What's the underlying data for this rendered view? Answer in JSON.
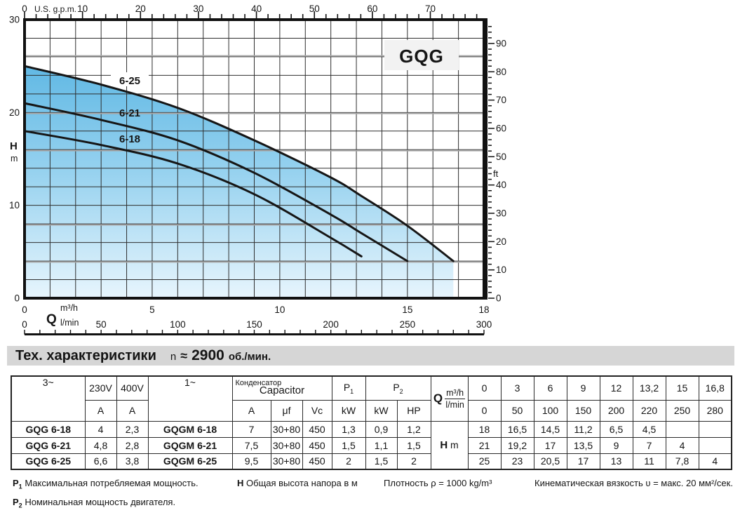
{
  "chart_data": {
    "type": "line",
    "title": "GQG",
    "series": [
      {
        "name": "6-18",
        "x": [
          0,
          3,
          6,
          9,
          12,
          13.2
        ],
        "y": [
          18,
          16.5,
          14.5,
          11.2,
          6.5,
          4.5
        ]
      },
      {
        "name": "6-21",
        "x": [
          0,
          3,
          6,
          9,
          12,
          13.2,
          15
        ],
        "y": [
          21,
          19.2,
          17,
          13.5,
          9,
          7,
          4
        ]
      },
      {
        "name": "6-25",
        "x": [
          0,
          3,
          6,
          9,
          12,
          13.2,
          15,
          16.8
        ],
        "y": [
          25,
          23,
          20.5,
          17,
          13,
          11,
          7.8,
          4
        ]
      }
    ],
    "xlim": [
      0,
      18
    ],
    "ylim_m": [
      0,
      30
    ],
    "grid": {
      "x_step_m3h": 1,
      "y_step_m": 2
    },
    "gray_guides_m": [
      3.9,
      7.9,
      15.9,
      19.9,
      26.1
    ],
    "axes": {
      "top": {
        "unit": "U.S. g.p.m.",
        "zero": "0",
        "labels": [
          10,
          20,
          30,
          40,
          50,
          60,
          70
        ],
        "minor_step": 2,
        "max": 78,
        "gpm_per_m3h": 4.403
      },
      "left": {
        "labels": [
          30,
          20,
          10,
          0
        ],
        "symbol": "H",
        "unit": "m"
      },
      "right": {
        "unit": "ft",
        "labels": [
          90,
          80,
          70,
          60,
          50,
          40,
          30,
          20,
          10,
          0
        ],
        "minor_step": 2,
        "max": 96,
        "ft_per_m": 3.2808
      },
      "bottom_m3h": {
        "unit": "m³/h",
        "labels": [
          0,
          5,
          10,
          15,
          18
        ]
      },
      "bottom_lmin": {
        "symbol": "Q",
        "unit": "l/min",
        "labels": [
          0,
          50,
          100,
          150,
          200,
          250,
          300
        ],
        "minor_step": 10,
        "max": 300,
        "lmin_per_m3h": 16.6667
      }
    },
    "curve_labels": [
      "6-25",
      "6-21",
      "6-18"
    ]
  },
  "heading": {
    "title": "Тех. характеристики",
    "n_label": "n",
    "approx": "≈",
    "rpm": "2900",
    "rpm_unit": "об./мин."
  },
  "table": {
    "col_3ph": "3~",
    "v230": "230V",
    "v400": "400V",
    "amp": "A",
    "col_1ph": "1~",
    "cap_ru": "Конденсатор",
    "cap_en": "Capacitor",
    "cap_cols": {
      "a": "A",
      "uf": "μf",
      "vc": "Vc"
    },
    "p1": {
      "sym": "P",
      "sub": "1",
      "unit": "kW"
    },
    "p2": {
      "sym": "P",
      "sub": "2",
      "units": [
        "kW",
        "HP"
      ]
    },
    "q": {
      "sym": "Q",
      "top": "m³/h",
      "bottom": "l/min"
    },
    "q_m3h": [
      "0",
      "3",
      "6",
      "9",
      "12",
      "13,2",
      "15",
      "16,8"
    ],
    "q_lmin": [
      "0",
      "50",
      "100",
      "150",
      "200",
      "220",
      "250",
      "280"
    ],
    "h_label": {
      "sym": "H",
      "unit": "m"
    },
    "rows": [
      {
        "name3": "GQG 6-18",
        "a230": "4",
        "a400": "2,3",
        "name1": "GQGM 6-18",
        "a1": "7",
        "uf": "30+80",
        "vc": "450",
        "p1": "1,3",
        "p2kw": "0,9",
        "p2hp": "1,2",
        "h": [
          "18",
          "16,5",
          "14,5",
          "11,2",
          "6,5",
          "4,5",
          "",
          ""
        ]
      },
      {
        "name3": "GQG 6-21",
        "a230": "4,8",
        "a400": "2,8",
        "name1": "GQGM 6-21",
        "a1": "7,5",
        "uf": "30+80",
        "vc": "450",
        "p1": "1,5",
        "p2kw": "1,1",
        "p2hp": "1,5",
        "h": [
          "21",
          "19,2",
          "17",
          "13,5",
          "9",
          "7",
          "4",
          ""
        ]
      },
      {
        "name3": "GQG 6-25",
        "a230": "6,6",
        "a400": "3,8",
        "name1": "GQGM 6-25",
        "a1": "9,5",
        "uf": "30+80",
        "vc": "450",
        "p1": "2",
        "p2kw": "1,5",
        "p2hp": "2",
        "h": [
          "25",
          "23",
          "20,5",
          "17",
          "13",
          "11",
          "7,8",
          "4"
        ]
      }
    ]
  },
  "footnotes": {
    "p1": {
      "sym": "P",
      "sub": "1",
      "text": "Максимальная потребляемая мощность."
    },
    "p2": {
      "sym": "P",
      "sub": "2",
      "text": "Номинальная мощность двигателя."
    },
    "h": {
      "sym": "H",
      "sub": "",
      "text": "Общая высота напора в м"
    },
    "density": "Плотность ρ = 1000 kg/m³",
    "viscosity": "Кинематическая вязкость υ = макс. 20 мм²/сек."
  }
}
